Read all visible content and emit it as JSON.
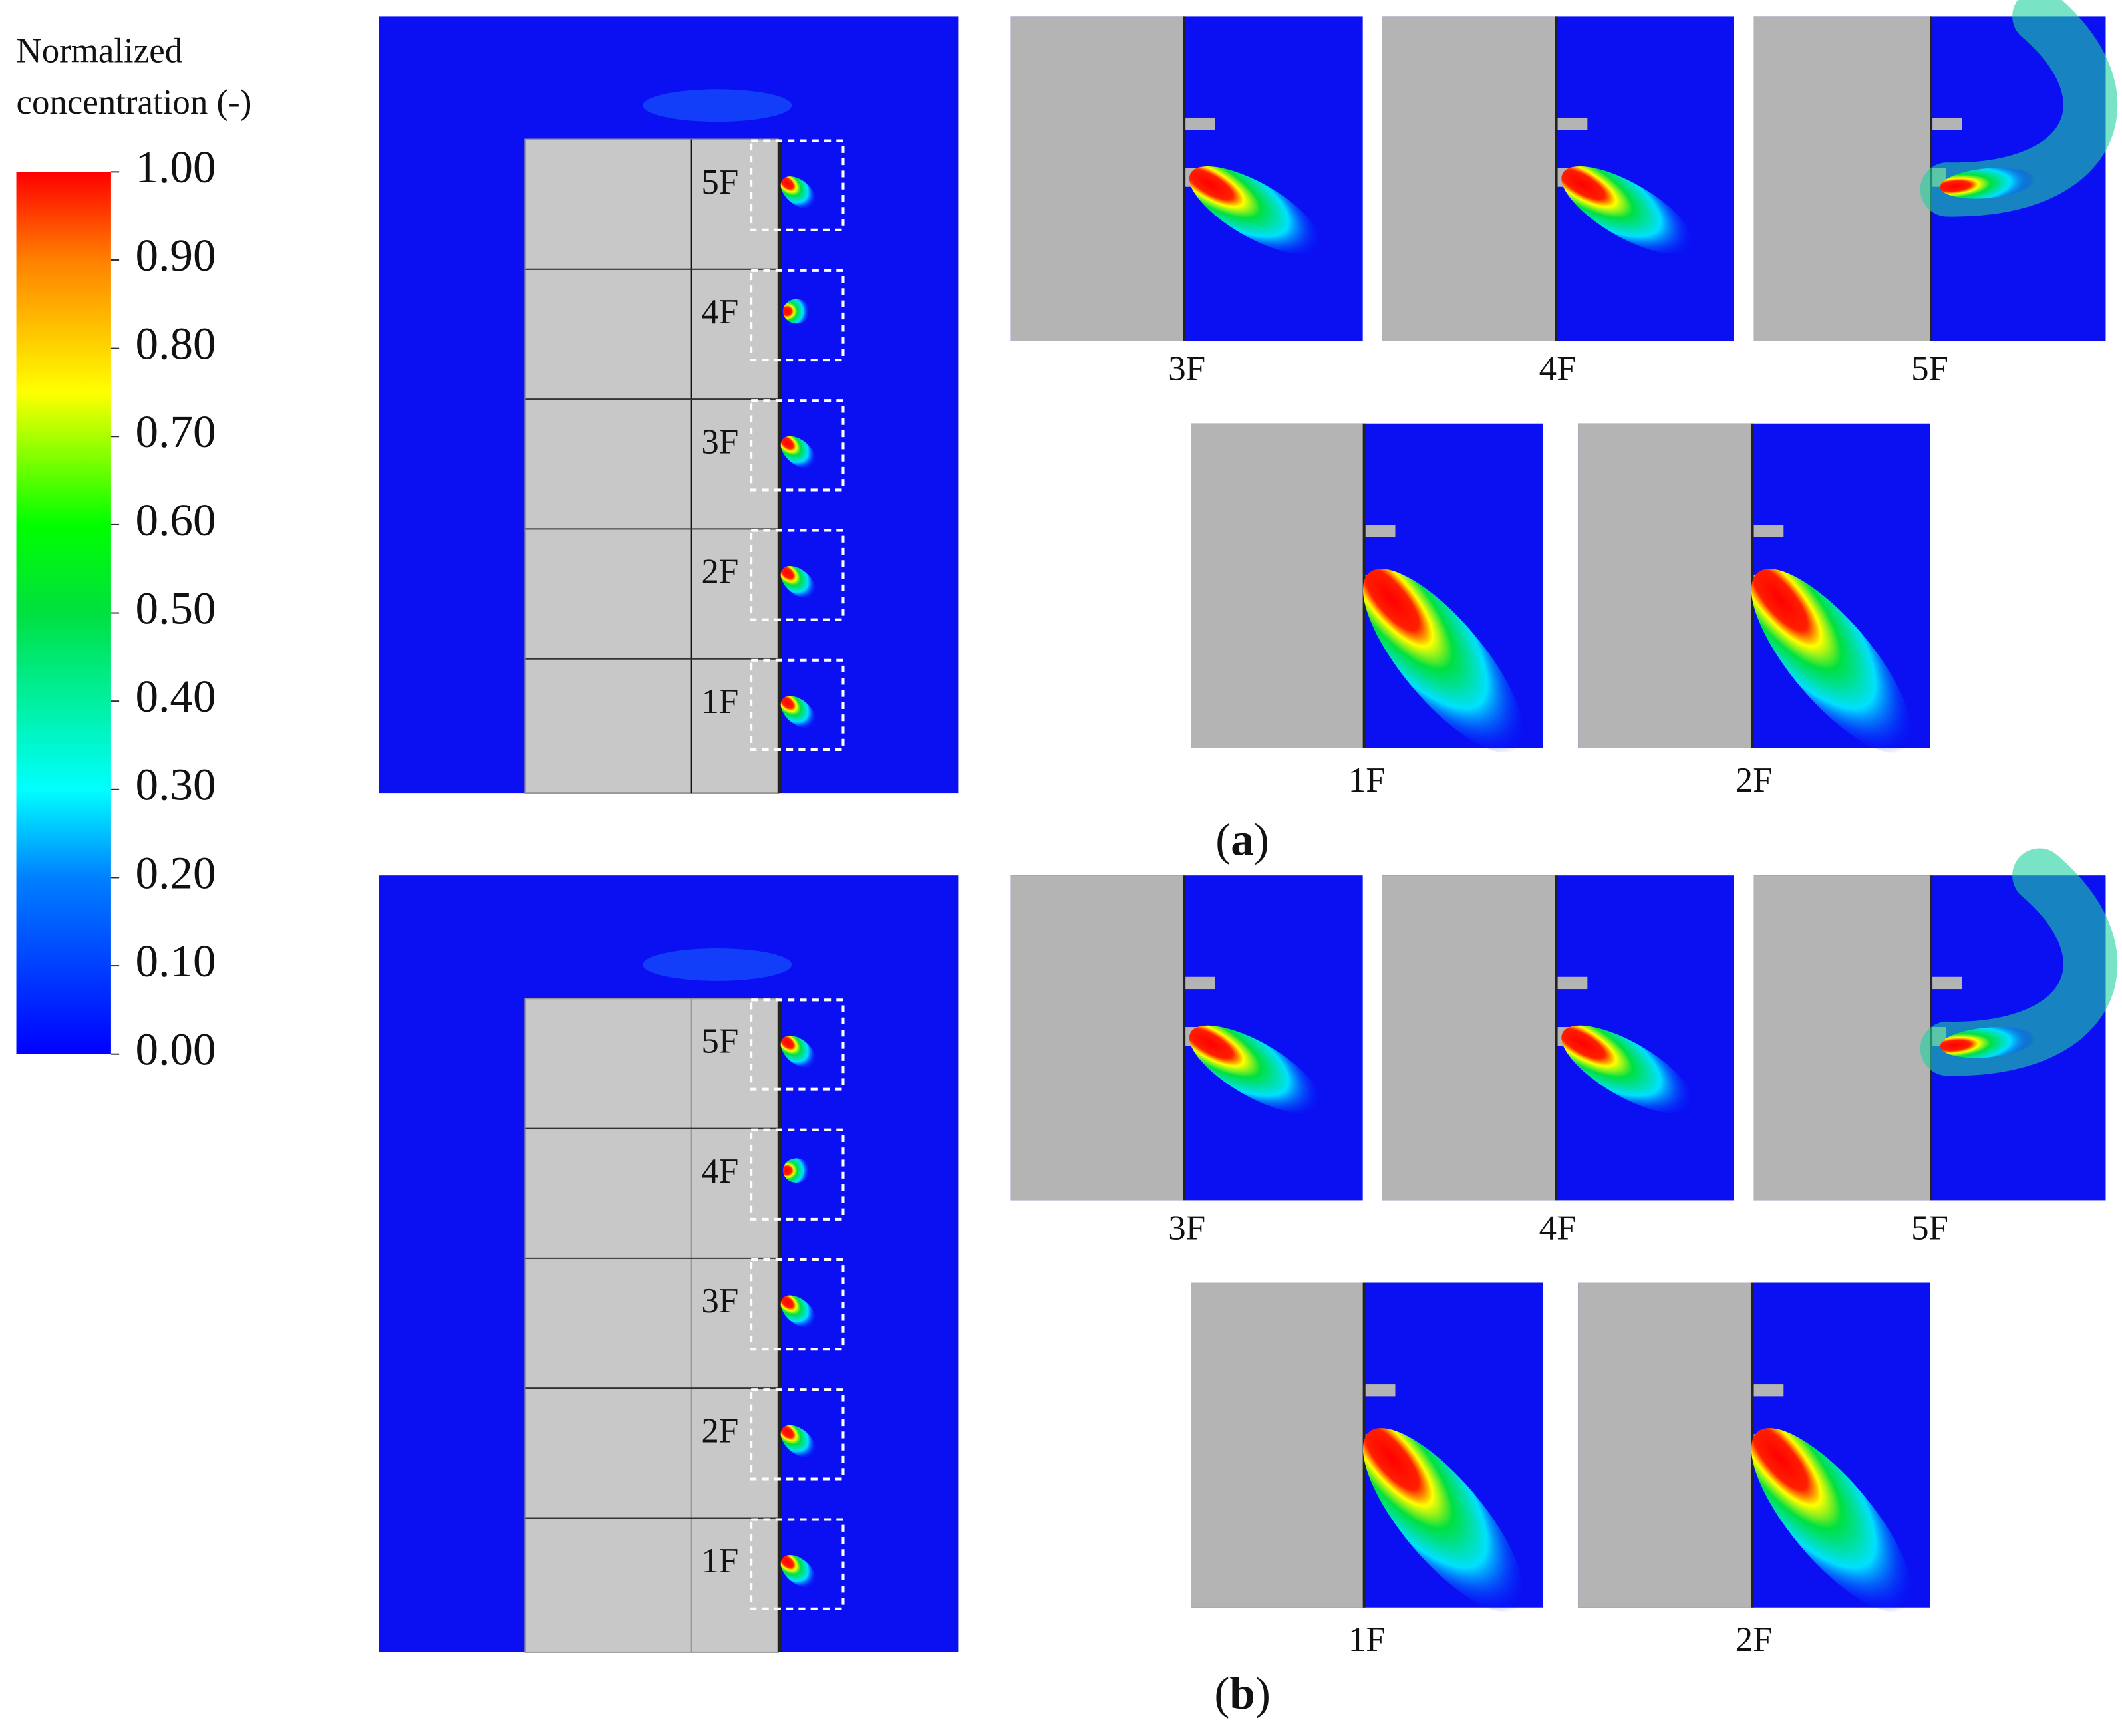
{
  "colorbar": {
    "title": [
      "Normalized",
      "concentration (-)"
    ],
    "ticks": [
      {
        "value": 1,
        "label": "1.00"
      },
      {
        "value": 0.9,
        "label": "0.90"
      },
      {
        "value": 0.8,
        "label": "0.80"
      },
      {
        "value": 0.7,
        "label": "0.70"
      },
      {
        "value": 0.6,
        "label": "0.60"
      },
      {
        "value": 0.5,
        "label": "0.50"
      },
      {
        "value": 0.4,
        "label": "0.40"
      },
      {
        "value": 0.3,
        "label": "0.30"
      },
      {
        "value": 0.2,
        "label": "0.20"
      },
      {
        "value": 0.1,
        "label": "0.10"
      },
      {
        "value": 0,
        "label": "0.00"
      }
    ]
  },
  "panels": [
    {
      "label": [
        "(",
        "a",
        ")"
      ],
      "floors": [
        "5F",
        "4F",
        "3F",
        "2F",
        "1F"
      ],
      "details": [
        "3F",
        "4F",
        "5F",
        "1F",
        "2F"
      ]
    },
    {
      "label": [
        "(",
        "b",
        ")"
      ],
      "floors": [
        "5F",
        "4F",
        "3F",
        "2F",
        "1F"
      ],
      "details": [
        "3F",
        "4F",
        "5F",
        "1F",
        "2F"
      ]
    }
  ]
}
